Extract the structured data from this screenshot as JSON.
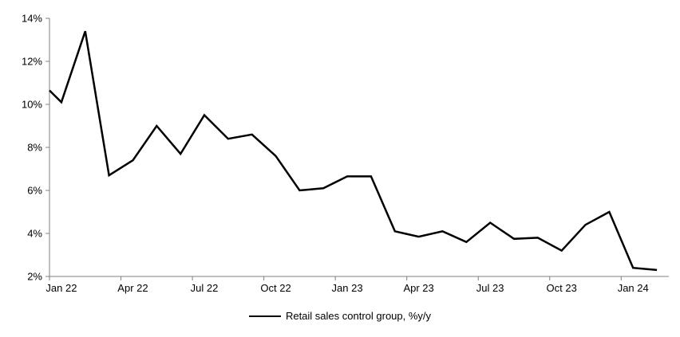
{
  "chart_data": {
    "type": "line",
    "title": "",
    "xlabel": "",
    "ylabel": "",
    "categories": [
      "Jan 22",
      "Feb 22",
      "Mar 22",
      "Apr 22",
      "May 22",
      "Jun 22",
      "Jul 22",
      "Aug 22",
      "Sep 22",
      "Oct 22",
      "Nov 22",
      "Dec 22",
      "Jan 23",
      "Feb 23",
      "Mar 23",
      "Apr 23",
      "May 23",
      "Jun 23",
      "Jul 23",
      "Aug 23",
      "Sep 23",
      "Oct 23",
      "Nov 23",
      "Dec 23",
      "Jan 24",
      "Feb 24"
    ],
    "series": [
      {
        "name": "Retail sales control group, %y/y",
        "color": "#000000",
        "values": [
          10.1,
          13.4,
          6.7,
          7.4,
          9.0,
          7.7,
          9.5,
          8.4,
          8.6,
          7.6,
          6.0,
          6.1,
          6.65,
          6.65,
          4.1,
          3.85,
          4.1,
          3.6,
          4.5,
          3.75,
          3.8,
          3.2,
          4.4,
          5.0,
          2.4,
          2.3
        ],
        "lead_in_value_at_left_edge": 10.65
      }
    ],
    "ylim": [
      2,
      14
    ],
    "y_tick_step": 2,
    "y_tick_labels": [
      "2%",
      "4%",
      "6%",
      "8%",
      "10%",
      "12%",
      "14%"
    ],
    "x_tick_labels": [
      "Jan 22",
      "Apr 22",
      "Jul 22",
      "Oct 22",
      "Jan 23",
      "Apr 23",
      "Jul 23",
      "Oct 23",
      "Jan 24"
    ],
    "x_tick_interval_months": 3,
    "grid": false,
    "legend_position": "bottom-center"
  },
  "legend": {
    "label": "Retail sales control group, %y/y"
  },
  "colors": {
    "line": "#000000",
    "axis": "#808080",
    "tick": "#808080",
    "text": "#000000",
    "background": "#ffffff"
  }
}
